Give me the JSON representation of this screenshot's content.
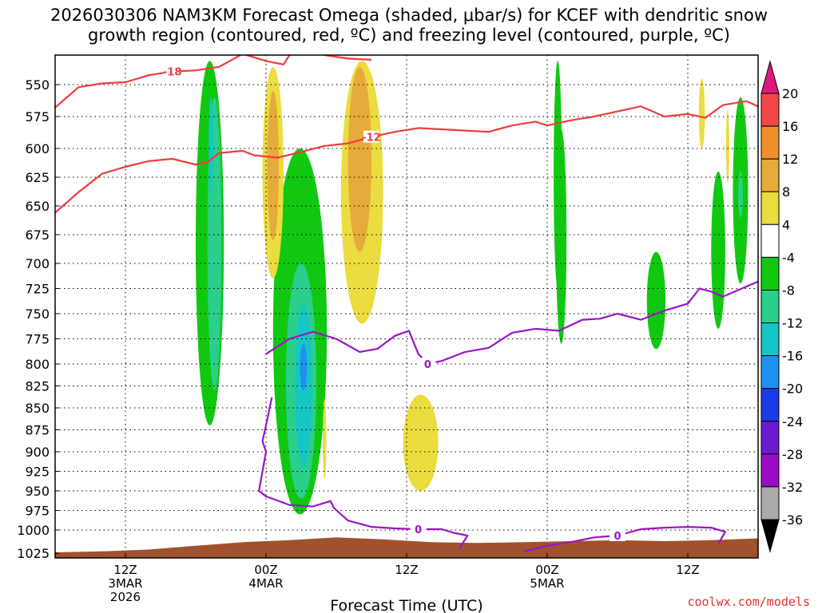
{
  "chart_data": {
    "type": "heatmap",
    "title_line1": "2026030306 NAM3KM Forecast Omega (shaded, μbar/s) for KCEF with dendritic snow",
    "title_line2": "growth region (contoured, red, ºC) and freezing level (contoured, purple, ºC)",
    "xlabel": "Forecast Time (UTC)",
    "credit": "coolwx.com/models",
    "ylevels": [
      "550",
      "575",
      "600",
      "625",
      "650",
      "675",
      "700",
      "725",
      "750",
      "775",
      "800",
      "825",
      "850",
      "875",
      "900",
      "925",
      "950",
      "975",
      "1000",
      "1025"
    ],
    "ylim": [
      525,
      1030
    ],
    "xlim": [
      6,
      66
    ],
    "xticks": [
      {
        "hour": 12,
        "label": "12Z",
        "sub1": "3MAR",
        "sub2": "2026"
      },
      {
        "hour": 24,
        "label": "00Z",
        "sub1": "4MAR",
        "sub2": ""
      },
      {
        "hour": 36,
        "label": "12Z",
        "sub1": "",
        "sub2": ""
      },
      {
        "hour": 48,
        "label": "00Z",
        "sub1": "5MAR",
        "sub2": ""
      },
      {
        "hour": 60,
        "label": "12Z",
        "sub1": "",
        "sub2": ""
      }
    ],
    "colorbar": {
      "labels": [
        "20",
        "16",
        "12",
        "8",
        "4",
        "-4",
        "-8",
        "-12",
        "-16",
        "-20",
        "-24",
        "-28",
        "-32",
        "-36"
      ],
      "bins": [
        {
          "lo": 20,
          "hi": 24,
          "color": "#e0187a"
        },
        {
          "lo": 16,
          "hi": 20,
          "color": "#f04848"
        },
        {
          "lo": 12,
          "hi": 16,
          "color": "#f08e2a"
        },
        {
          "lo": 8,
          "hi": 12,
          "color": "#e6ab3a"
        },
        {
          "lo": 4,
          "hi": 8,
          "color": "#ebdc40"
        },
        {
          "lo": -4,
          "hi": 4,
          "color": "#ffffff"
        },
        {
          "lo": -8,
          "hi": -4,
          "color": "#11c811"
        },
        {
          "lo": -12,
          "hi": -8,
          "color": "#2acf8c"
        },
        {
          "lo": -16,
          "hi": -12,
          "color": "#16c5c5"
        },
        {
          "lo": -20,
          "hi": -16,
          "color": "#1e90f0"
        },
        {
          "lo": -24,
          "hi": -20,
          "color": "#1a3ce6"
        },
        {
          "lo": -28,
          "hi": -24,
          "color": "#6a1bd0"
        },
        {
          "lo": -32,
          "hi": -28,
          "color": "#9a0cc4"
        },
        {
          "lo": -36,
          "hi": -32,
          "color": "#aaaaaa"
        },
        {
          "lo": -40,
          "hi": -36,
          "color": "#000000"
        }
      ]
    },
    "omega_regions": [
      {
        "omega": -6,
        "hour": 19.2,
        "p_top": 530,
        "p_bot": 870,
        "width_h": 2.4
      },
      {
        "omega": -9,
        "hour": 19.6,
        "p_top": 560,
        "p_bot": 830,
        "width_h": 1.2
      },
      {
        "omega": -13,
        "hour": 19.3,
        "p_top": 560,
        "p_bot": 640,
        "width_h": 0.4
      },
      {
        "omega": -6,
        "hour": 26.9,
        "p_top": 600,
        "p_bot": 980,
        "width_h": 4.6
      },
      {
        "omega": -9,
        "hour": 27.0,
        "p_top": 700,
        "p_bot": 960,
        "width_h": 2.6
      },
      {
        "omega": -13,
        "hour": 27.2,
        "p_top": 740,
        "p_bot": 920,
        "width_h": 1.4
      },
      {
        "omega": -17,
        "hour": 27.2,
        "p_top": 780,
        "p_bot": 830,
        "width_h": 0.6
      },
      {
        "omega": 6,
        "hour": 24.6,
        "p_top": 535,
        "p_bot": 715,
        "width_h": 1.8
      },
      {
        "omega": 9,
        "hour": 24.6,
        "p_top": 555,
        "p_bot": 680,
        "width_h": 1.0
      },
      {
        "omega": 6,
        "hour": 32.2,
        "p_top": 530,
        "p_bot": 760,
        "width_h": 3.6
      },
      {
        "omega": 9,
        "hour": 32.0,
        "p_top": 535,
        "p_bot": 690,
        "width_h": 2.0
      },
      {
        "omega": 6,
        "hour": 29.0,
        "p_top": 840,
        "p_bot": 935,
        "width_h": 0.3
      },
      {
        "omega": 6,
        "hour": 37.2,
        "p_top": 835,
        "p_bot": 950,
        "width_h": 3.0
      },
      {
        "omega": -6,
        "hour": 48.9,
        "p_top": 530,
        "p_bot": 725,
        "width_h": 0.7
      },
      {
        "omega": -6,
        "hour": 49.2,
        "p_top": 585,
        "p_bot": 780,
        "width_h": 0.9
      },
      {
        "omega": -6,
        "hour": 57.3,
        "p_top": 690,
        "p_bot": 785,
        "width_h": 1.6
      },
      {
        "omega": -6,
        "hour": 62.6,
        "p_top": 620,
        "p_bot": 765,
        "width_h": 1.2
      },
      {
        "omega": -6,
        "hour": 64.5,
        "p_top": 560,
        "p_bot": 720,
        "width_h": 1.3
      },
      {
        "omega": -10,
        "hour": 64.5,
        "p_top": 620,
        "p_bot": 660,
        "width_h": 0.4
      },
      {
        "omega": 6,
        "hour": 61.2,
        "p_top": 545,
        "p_bot": 600,
        "width_h": 0.5
      },
      {
        "omega": 6,
        "hour": 63.4,
        "p_top": 570,
        "p_bot": 630,
        "width_h": 0.2
      }
    ],
    "dgz_contours": [
      {
        "label": "-18",
        "label_hour": 15.5,
        "points": [
          [
            6,
            568
          ],
          [
            8,
            552
          ],
          [
            10,
            549
          ],
          [
            12,
            548
          ],
          [
            14,
            542
          ],
          [
            16,
            539
          ],
          [
            18,
            538
          ],
          [
            20,
            535
          ],
          [
            22,
            524
          ],
          [
            24,
            530
          ],
          [
            25.5,
            533
          ],
          [
            26,
            525
          ],
          [
            28,
            521
          ],
          [
            29,
            525
          ],
          [
            31,
            528
          ],
          [
            33,
            529
          ]
        ]
      },
      {
        "label": "-12",
        "label_hour": 33.5,
        "points": [
          [
            6,
            656
          ],
          [
            8,
            638
          ],
          [
            10,
            622
          ],
          [
            12,
            616
          ],
          [
            14,
            611
          ],
          [
            16,
            609
          ],
          [
            18,
            614
          ],
          [
            19,
            612
          ],
          [
            20,
            604
          ],
          [
            22,
            602
          ],
          [
            23,
            606
          ],
          [
            25,
            608
          ],
          [
            27,
            603
          ],
          [
            29,
            598
          ],
          [
            31,
            596
          ],
          [
            33,
            591
          ],
          [
            35,
            587
          ],
          [
            37,
            584
          ],
          [
            39,
            585
          ],
          [
            41,
            586
          ],
          [
            43,
            587
          ],
          [
            45,
            582
          ],
          [
            47,
            579
          ],
          [
            48,
            582
          ],
          [
            50,
            578
          ],
          [
            52,
            575
          ],
          [
            54,
            571
          ],
          [
            56,
            567
          ],
          [
            58,
            575
          ],
          [
            60,
            573
          ],
          [
            61.5,
            576
          ],
          [
            63,
            566
          ],
          [
            65,
            563
          ],
          [
            66,
            567
          ]
        ]
      }
    ],
    "freezing_contours": [
      {
        "label": "0",
        "label_hour": 37.8,
        "points": [
          [
            24.5,
            838
          ],
          [
            24.0,
            870
          ],
          [
            23.7,
            888
          ],
          [
            24.0,
            900
          ],
          [
            23.7,
            925
          ],
          [
            23.4,
            950
          ],
          [
            24,
            957
          ],
          [
            26,
            968
          ],
          [
            28,
            970
          ],
          [
            29.5,
            963
          ],
          [
            29.8,
            972
          ],
          [
            31,
            988
          ],
          [
            33,
            996
          ],
          [
            35,
            998
          ],
          [
            37,
            999
          ],
          [
            39,
            999
          ],
          [
            40,
            1003
          ],
          [
            41.2,
            1006
          ],
          [
            40.5,
            1020
          ]
        ]
      },
      {
        "label": "0",
        "label_hour": 37.8,
        "points": [
          [
            24.0,
            790
          ],
          [
            26,
            775
          ],
          [
            28,
            768
          ],
          [
            30,
            775
          ],
          [
            32,
            788
          ],
          [
            33.5,
            785
          ],
          [
            35,
            772
          ],
          [
            36.2,
            767
          ],
          [
            37,
            790
          ],
          [
            37.8,
            800
          ],
          [
            39,
            797
          ],
          [
            41,
            788
          ],
          [
            43,
            784
          ],
          [
            45,
            769
          ],
          [
            47,
            765
          ],
          [
            49,
            767
          ],
          [
            51,
            756
          ],
          [
            52.5,
            755
          ],
          [
            54,
            750
          ],
          [
            56,
            756
          ],
          [
            58,
            747
          ],
          [
            60,
            740
          ],
          [
            61,
            725
          ],
          [
            62,
            728
          ],
          [
            63,
            733
          ],
          [
            65,
            723
          ],
          [
            66,
            718
          ]
        ]
      },
      {
        "label": "0",
        "label_hour": 54.0,
        "points": [
          [
            46,
            1023
          ],
          [
            48,
            1017
          ],
          [
            50,
            1013
          ],
          [
            52,
            1008
          ],
          [
            54,
            1006
          ],
          [
            56,
            999
          ],
          [
            58,
            997
          ],
          [
            60,
            996
          ],
          [
            62,
            997
          ],
          [
            63.2,
            1002
          ],
          [
            62.6,
            1015
          ]
        ]
      }
    ],
    "terrain": [
      [
        6,
        1024
      ],
      [
        10,
        1023
      ],
      [
        14,
        1021
      ],
      [
        18,
        1017
      ],
      [
        22,
        1013
      ],
      [
        26,
        1011
      ],
      [
        30,
        1008
      ],
      [
        34,
        1010
      ],
      [
        38,
        1013
      ],
      [
        42,
        1014
      ],
      [
        46,
        1013
      ],
      [
        50,
        1012
      ],
      [
        54,
        1011
      ],
      [
        58,
        1012
      ],
      [
        62,
        1011
      ],
      [
        66,
        1009
      ]
    ]
  }
}
